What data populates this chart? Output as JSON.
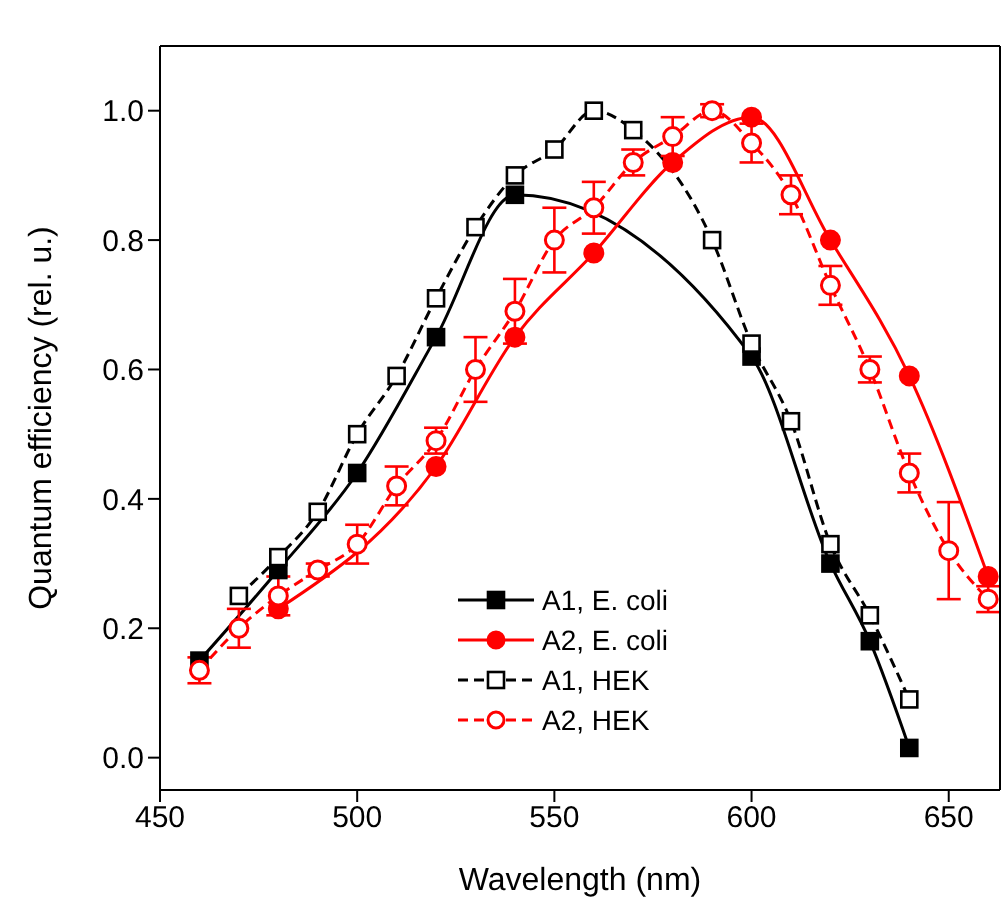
{
  "chart_data": {
    "type": "line",
    "xlabel": "Wavelength (nm)",
    "ylabel": "Quantum efficiency (rel. u.)",
    "xlim": [
      450,
      663
    ],
    "xticks": [
      450,
      500,
      550,
      600,
      650
    ],
    "ylim": [
      -0.05,
      1.1
    ],
    "yticks": [
      {
        "value": 0,
        "label": "0.0"
      },
      {
        "value": 0.2,
        "label": "0.2"
      },
      {
        "value": 0.4,
        "label": "0.4"
      },
      {
        "value": 0.6,
        "label": "0.6"
      },
      {
        "value": 0.8,
        "label": "0.8"
      },
      {
        "value": 1,
        "label": "1.0"
      }
    ],
    "grid": false,
    "legend": "bottom right",
    "series": [
      {
        "name": "A1, E. coli",
        "color": "#000000",
        "marker": "square",
        "line_style": "solid",
        "x": [
          460,
          480,
          500,
          520,
          540,
          600,
          620,
          630,
          640
        ],
        "values": [
          0.15,
          0.29,
          0.44,
          0.65,
          0.87,
          0.62,
          0.3,
          0.18,
          0.015
        ]
      },
      {
        "name": "A2, E. coli",
        "color": "#ff0000",
        "marker": "circle",
        "line_style": "solid",
        "x": [
          480,
          520,
          540,
          560,
          580,
          600,
          620,
          640,
          660
        ],
        "values": [
          0.23,
          0.45,
          0.65,
          0.78,
          0.92,
          0.99,
          0.8,
          0.59,
          0.28
        ]
      },
      {
        "name": "A1, HEK",
        "color": "#000000",
        "marker": "square",
        "line_style": "dashed",
        "x": [
          470,
          480,
          490,
          500,
          510,
          520,
          530,
          540,
          550,
          560,
          570,
          580,
          590,
          600,
          610,
          620,
          630,
          640
        ],
        "values": [
          0.25,
          0.31,
          0.38,
          0.5,
          0.59,
          0.71,
          0.82,
          0.9,
          0.94,
          1.0,
          0.97,
          null,
          0.8,
          0.64,
          0.52,
          0.33,
          0.22,
          0.09
        ]
      },
      {
        "name": "A2, HEK",
        "color": "#ff0000",
        "marker": "circle",
        "line_style": "dashed",
        "x": [
          460,
          470,
          480,
          490,
          500,
          510,
          520,
          530,
          540,
          550,
          560,
          570,
          580,
          590,
          600,
          610,
          620,
          630,
          640,
          650,
          660
        ],
        "values": [
          0.135,
          0.2,
          0.25,
          0.29,
          0.33,
          0.42,
          0.49,
          0.6,
          0.69,
          0.8,
          0.85,
          0.92,
          0.96,
          1.0,
          0.95,
          0.87,
          0.73,
          0.6,
          0.44,
          0.32,
          0.245
        ],
        "errors": [
          0.02,
          0.03,
          0.03,
          0.01,
          0.03,
          0.03,
          0.02,
          0.05,
          0.05,
          0.05,
          0.04,
          0.02,
          0.03,
          0.01,
          0.03,
          0.03,
          0.03,
          0.02,
          0.03,
          0.075,
          0.02
        ]
      }
    ]
  }
}
